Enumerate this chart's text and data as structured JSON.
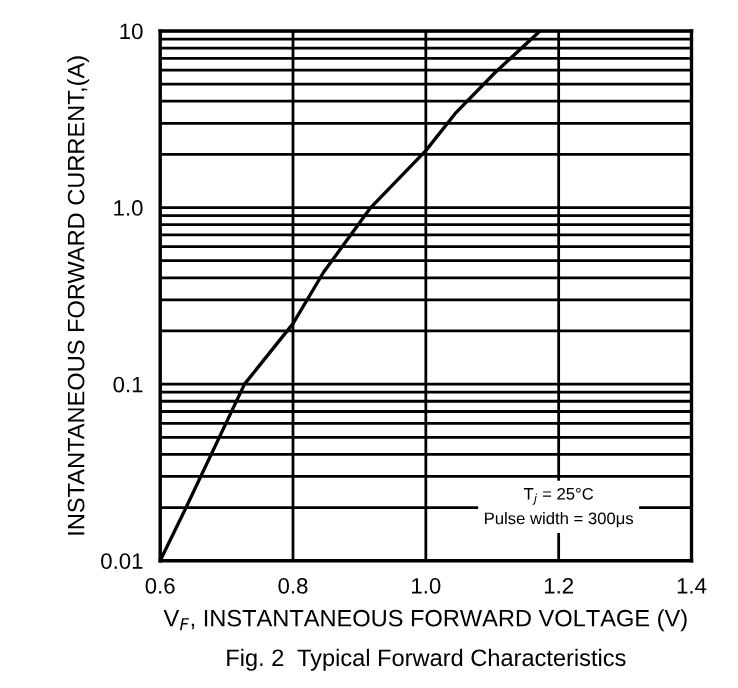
{
  "chart_data": {
    "type": "line",
    "xlabel": "V$_{F}$, INSTANTANEOUS FORWARD VOLTAGE (V)",
    "ylabel": "INSTANTANEOUS FORWARD CURRENT,(A)",
    "annotations": [
      "Fig. 2  Typical Forward Characteristics",
      "T$_{j}$ = 25°C\nPulse width = 300μs"
    ],
    "series": [
      {
        "color": "#000000",
        "x": [
          0.6,
          0.639,
          0.727,
          0.8,
          0.846,
          0.917,
          1.0,
          1.044,
          1.104,
          1.172
        ],
        "values": [
          0.01,
          0.02,
          0.1,
          0.22,
          0.43,
          1.0,
          2.1,
          3.4,
          5.8,
          10
        ]
      }
    ],
    "log": "y",
    "grid": true,
    "marker": "none",
    "line_style": "solid",
    "xlim": [
      0.6,
      1.4
    ],
    "xticks": [
      0.6,
      0.8,
      {
        "value": 1.0,
        "label": "1.0"
      },
      1.2,
      1.4
    ],
    "ylim": [
      0.01,
      10
    ],
    "yticks": [
      {
        "value": 0.01,
        "label": "0.01"
      },
      {
        "value": 0.02,
        "label": null
      },
      {
        "value": 0.03,
        "label": null
      },
      {
        "value": 0.04,
        "label": null
      },
      {
        "value": 0.05,
        "label": null
      },
      {
        "value": 0.06,
        "label": null
      },
      {
        "value": 0.07,
        "label": null
      },
      {
        "value": 0.08,
        "label": null
      },
      {
        "value": 0.09,
        "label": null
      },
      {
        "value": 0.1,
        "label": "0.1"
      },
      {
        "value": 0.2,
        "label": null
      },
      {
        "value": 0.3,
        "label": null
      },
      {
        "value": 0.4,
        "label": null
      },
      {
        "value": 0.5,
        "label": null
      },
      {
        "value": 0.6,
        "label": null
      },
      {
        "value": 0.7,
        "label": null
      },
      {
        "value": 0.8,
        "label": null
      },
      {
        "value": 0.9,
        "label": null
      },
      {
        "value": 1,
        "label": "1.0"
      },
      {
        "value": 2,
        "label": null
      },
      {
        "value": 3,
        "label": null
      },
      {
        "value": 4,
        "label": null
      },
      {
        "value": 5,
        "label": null
      },
      {
        "value": 6,
        "label": null
      },
      {
        "value": 7,
        "label": null
      },
      {
        "value": 8,
        "label": null
      },
      {
        "value": 9,
        "label": null
      },
      {
        "value": 10,
        "label": "10"
      }
    ]
  }
}
